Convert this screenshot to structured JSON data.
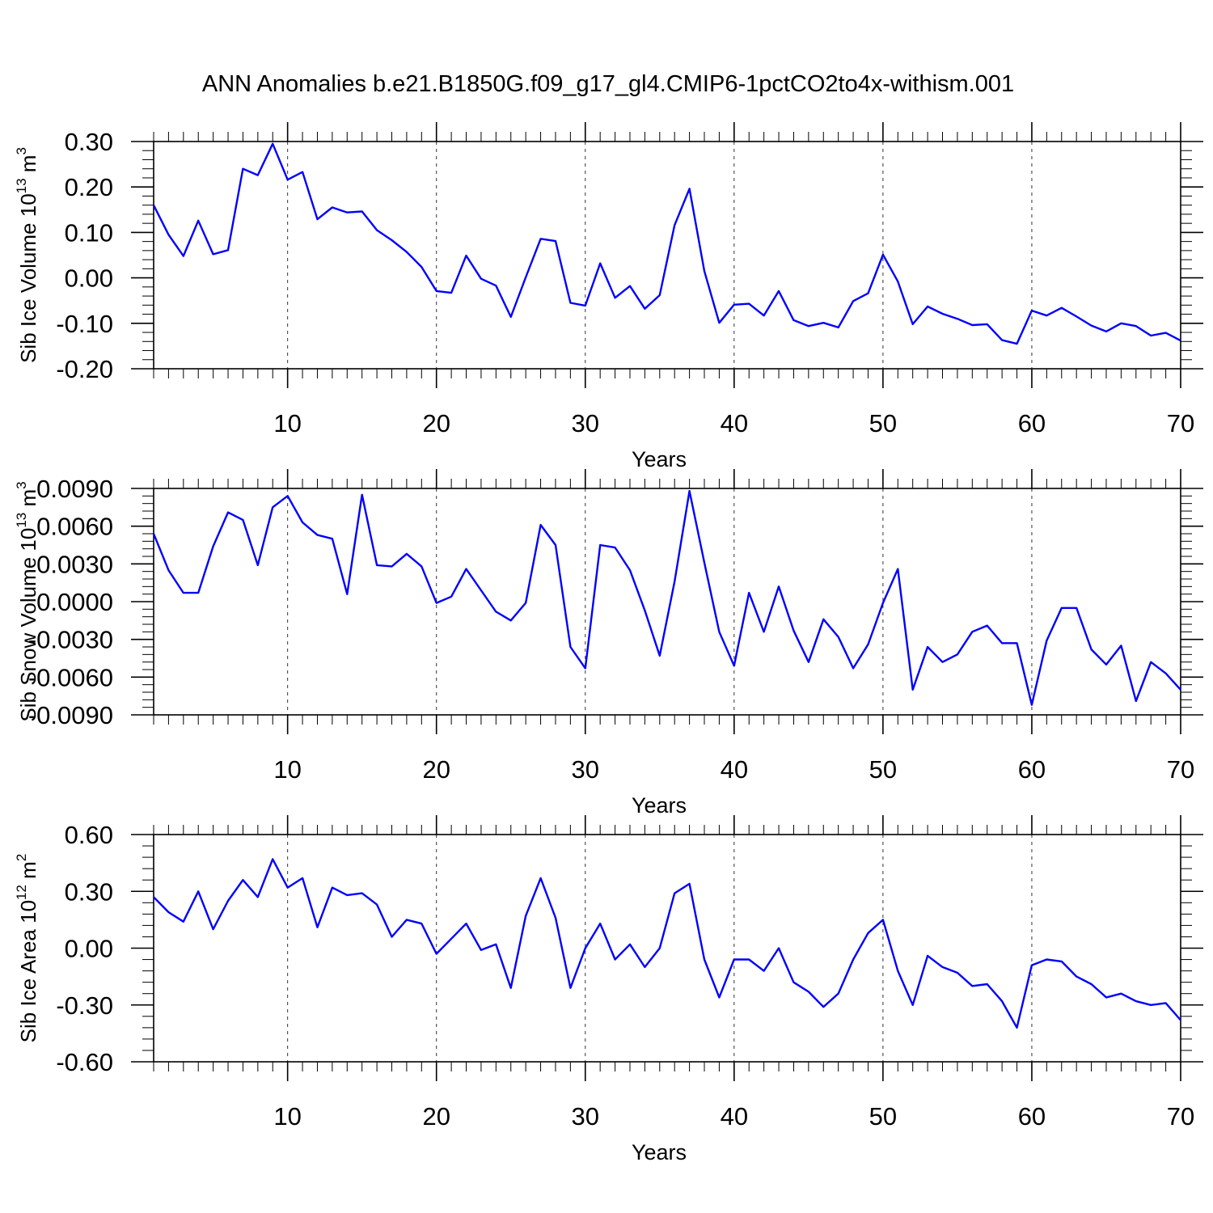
{
  "figure": {
    "title": "ANN Anomalies b.e21.B1850G.f09_g17_gl4.CMIP6-1pctCO2to4x-withism.001",
    "line_color": "#0000ff"
  },
  "chart_data": [
    {
      "type": "line",
      "title": "",
      "xlabel": "Years",
      "ylabel": {
        "base": "Sib Ice Volume 10",
        "exp": "13",
        "unit": " m",
        "unit_exp": "3"
      },
      "xlim": [
        1,
        70
      ],
      "ylim": [
        -0.2,
        0.3
      ],
      "xticks": [
        10,
        20,
        30,
        40,
        50,
        60,
        70
      ],
      "xtick_labels": [
        "10",
        "20",
        "30",
        "40",
        "50",
        "60",
        "70"
      ],
      "yticks": [
        -0.2,
        -0.1,
        0.0,
        0.1,
        0.2,
        0.3
      ],
      "ytick_labels": [
        "-0.20",
        "-0.10",
        "0.00",
        "0.10",
        "0.20",
        "0.30"
      ],
      "grid": "vertical dashed at major x ticks",
      "series": [
        {
          "name": "Sib Ice Volume",
          "x": [
            1,
            2,
            3,
            4,
            5,
            6,
            7,
            8,
            9,
            10,
            11,
            12,
            13,
            14,
            15,
            16,
            17,
            18,
            19,
            20,
            21,
            22,
            23,
            24,
            25,
            26,
            27,
            28,
            29,
            30,
            31,
            32,
            33,
            34,
            35,
            36,
            37,
            38,
            39,
            40,
            41,
            42,
            43,
            44,
            45,
            46,
            47,
            48,
            49,
            50,
            51,
            52,
            53,
            54,
            55,
            56,
            57,
            58,
            59,
            60,
            61,
            62,
            63,
            64,
            65,
            66,
            67,
            68,
            69,
            70
          ],
          "values": [
            0.16,
            0.095,
            0.048,
            0.126,
            0.052,
            0.061,
            0.24,
            0.226,
            0.295,
            0.216,
            0.233,
            0.129,
            0.155,
            0.144,
            0.146,
            0.105,
            0.083,
            0.057,
            0.024,
            -0.029,
            -0.033,
            0.049,
            -0.002,
            -0.017,
            -0.086,
            0.001,
            0.086,
            0.081,
            -0.055,
            -0.061,
            0.032,
            -0.044,
            -0.018,
            -0.068,
            -0.038,
            0.116,
            0.196,
            0.015,
            -0.099,
            -0.059,
            -0.057,
            -0.083,
            -0.029,
            -0.093,
            -0.106,
            -0.099,
            -0.109,
            -0.051,
            -0.034,
            0.051,
            -0.008,
            -0.102,
            -0.063,
            -0.079,
            -0.09,
            -0.104,
            -0.102,
            -0.137,
            -0.145,
            -0.072,
            -0.083,
            -0.066,
            -0.085,
            -0.105,
            -0.118,
            -0.1,
            -0.106,
            -0.127,
            -0.121,
            -0.138
          ]
        }
      ]
    },
    {
      "type": "line",
      "title": "",
      "xlabel": "Years",
      "ylabel": {
        "base": "Sib Snow Volume 10",
        "exp": "13",
        "unit": " m",
        "unit_exp": "3"
      },
      "xlim": [
        1,
        70
      ],
      "ylim": [
        -0.009,
        0.009
      ],
      "xticks": [
        10,
        20,
        30,
        40,
        50,
        60,
        70
      ],
      "xtick_labels": [
        "10",
        "20",
        "30",
        "40",
        "50",
        "60",
        "70"
      ],
      "yticks": [
        -0.009,
        -0.006,
        -0.003,
        0.0,
        0.003,
        0.006,
        0.009
      ],
      "ytick_labels": [
        "-0.0090",
        "-0.0060",
        "-0.0030",
        "0.0000",
        "0.0030",
        "0.0060",
        "0.0090"
      ],
      "grid": "vertical dashed at major x ticks",
      "series": [
        {
          "name": "Sib Snow Volume",
          "x": [
            1,
            2,
            3,
            4,
            5,
            6,
            7,
            8,
            9,
            10,
            11,
            12,
            13,
            14,
            15,
            16,
            17,
            18,
            19,
            20,
            21,
            22,
            23,
            24,
            25,
            26,
            27,
            28,
            29,
            30,
            31,
            32,
            33,
            34,
            35,
            36,
            37,
            38,
            39,
            40,
            41,
            42,
            43,
            44,
            45,
            46,
            47,
            48,
            49,
            50,
            51,
            52,
            53,
            54,
            55,
            56,
            57,
            58,
            59,
            60,
            61,
            62,
            63,
            64,
            65,
            66,
            67,
            68,
            69,
            70
          ],
          "values": [
            0.0054,
            0.0025,
            0.0007,
            0.0007,
            0.0044,
            0.0071,
            0.0065,
            0.0029,
            0.0075,
            0.0084,
            0.0063,
            0.0053,
            0.005,
            0.0006,
            0.0085,
            0.0029,
            0.0028,
            0.0038,
            0.0028,
            -0.0001,
            0.0004,
            0.0026,
            0.0009,
            -0.0008,
            -0.0015,
            -0.0001,
            0.0061,
            0.0045,
            -0.0036,
            -0.0053,
            0.0045,
            0.0043,
            0.0025,
            -0.0007,
            -0.0043,
            0.0016,
            0.0088,
            0.0031,
            -0.0024,
            -0.0051,
            0.0007,
            -0.0024,
            0.0012,
            -0.0023,
            -0.0048,
            -0.0014,
            -0.0028,
            -0.0053,
            -0.0034,
            -0.0001,
            0.0026,
            -0.007,
            -0.0036,
            -0.0048,
            -0.0042,
            -0.0024,
            -0.0019,
            -0.0033,
            -0.0033,
            -0.0082,
            -0.0031,
            -0.0005,
            -0.0005,
            -0.0038,
            -0.005,
            -0.0035,
            -0.0079,
            -0.0048,
            -0.0057,
            -0.007
          ]
        }
      ]
    },
    {
      "type": "line",
      "title": "",
      "xlabel": "Years",
      "ylabel": {
        "base": "Sib Ice Area 10",
        "exp": "12",
        "unit": " m",
        "unit_exp": "2"
      },
      "xlim": [
        1,
        70
      ],
      "ylim": [
        -0.6,
        0.6
      ],
      "xticks": [
        10,
        20,
        30,
        40,
        50,
        60,
        70
      ],
      "xtick_labels": [
        "10",
        "20",
        "30",
        "40",
        "50",
        "60",
        "70"
      ],
      "yticks": [
        -0.6,
        -0.3,
        0.0,
        0.3,
        0.6
      ],
      "ytick_labels": [
        "-0.60",
        "-0.30",
        "0.00",
        "0.30",
        "0.60"
      ],
      "grid": "vertical dashed at major x ticks",
      "series": [
        {
          "name": "Sib Ice Area",
          "x": [
            1,
            2,
            3,
            4,
            5,
            6,
            7,
            8,
            9,
            10,
            11,
            12,
            13,
            14,
            15,
            16,
            17,
            18,
            19,
            20,
            21,
            22,
            23,
            24,
            25,
            26,
            27,
            28,
            29,
            30,
            31,
            32,
            33,
            34,
            35,
            36,
            37,
            38,
            39,
            40,
            41,
            42,
            43,
            44,
            45,
            46,
            47,
            48,
            49,
            50,
            51,
            52,
            53,
            54,
            55,
            56,
            57,
            58,
            59,
            60,
            61,
            62,
            63,
            64,
            65,
            66,
            67,
            68,
            69,
            70
          ],
          "values": [
            0.27,
            0.19,
            0.14,
            0.3,
            0.1,
            0.25,
            0.36,
            0.27,
            0.47,
            0.32,
            0.37,
            0.11,
            0.32,
            0.28,
            0.29,
            0.23,
            0.06,
            0.15,
            0.13,
            -0.03,
            0.05,
            0.13,
            -0.01,
            0.02,
            -0.21,
            0.17,
            0.37,
            0.16,
            -0.21,
            0.0,
            0.13,
            -0.06,
            0.02,
            -0.1,
            0.0,
            0.29,
            0.34,
            -0.06,
            -0.26,
            -0.06,
            -0.06,
            -0.12,
            0.0,
            -0.18,
            -0.23,
            -0.31,
            -0.24,
            -0.06,
            0.08,
            0.15,
            -0.12,
            -0.3,
            -0.04,
            -0.1,
            -0.13,
            -0.2,
            -0.19,
            -0.28,
            -0.42,
            -0.09,
            -0.06,
            -0.07,
            -0.15,
            -0.19,
            -0.26,
            -0.24,
            -0.28,
            -0.3,
            -0.29,
            -0.38
          ]
        }
      ]
    }
  ]
}
